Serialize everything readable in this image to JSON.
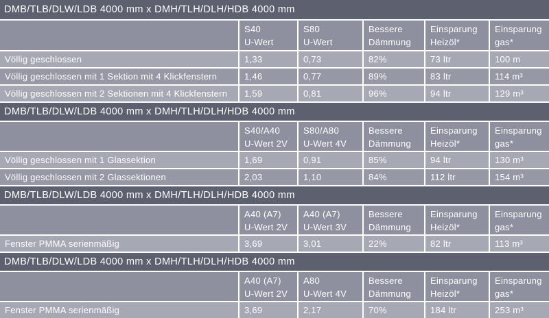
{
  "colors": {
    "band": "#5d606f",
    "column_header": "#8e90a0",
    "row_light": "#a6a8b4",
    "row_dark": "#9798a6",
    "text": "#ffffff",
    "separator": "#ffffff"
  },
  "sections": [
    {
      "title": "DMB/TLB/DLW/LDB 4000 mm x DMH/TLH/DLH/HDB 4000 mm",
      "columns": [
        {
          "line1": "S40",
          "line2": "U-Wert"
        },
        {
          "line1": "S80",
          "line2": "U-Wert"
        },
        {
          "line1": "Bessere",
          "line2": "Dämmung"
        },
        {
          "line1": "Einsparung",
          "line2": "Heizöl*"
        },
        {
          "line1": "Einsparung",
          "line2": "gas*"
        }
      ],
      "rows": [
        {
          "label": "Völlig geschlossen",
          "values": [
            "1,33",
            "0,73",
            "82%",
            "73 ltr",
            "100 m"
          ]
        },
        {
          "label": "Völlig geschlossen mit 1 Sektion mit 4 Klickfenstern",
          "values": [
            "1,46",
            "0,77",
            "89%",
            "83 ltr",
            "114 m³"
          ]
        },
        {
          "label": "Völlig geschlossen mit 2 Sektionen mit 4 Klickfenstern",
          "values": [
            "1,59",
            "0,81",
            "96%",
            "94 ltr",
            "129 m³"
          ]
        }
      ]
    },
    {
      "title": "DMB/TLB/DLW/LDB 4000 mm x DMH/TLH/DLH/HDB 4000 mm",
      "columns": [
        {
          "line1": "S40/A40",
          "line2": "U-Wert 2V"
        },
        {
          "line1": "S80/A80",
          "line2": "U-Wert 4V"
        },
        {
          "line1": "Bessere",
          "line2": "Dämmung"
        },
        {
          "line1": "Einsparung",
          "line2": "Heizöl*"
        },
        {
          "line1": "Einsparung",
          "line2": "gas*"
        }
      ],
      "rows": [
        {
          "label": "Völlig geschlossen mit 1 Glassektion",
          "values": [
            "1,69",
            "0,91",
            "85%",
            "94 ltr",
            "130 m³"
          ]
        },
        {
          "label": "Völlig geschlossen mit 2 Glassektionen",
          "values": [
            "2,03",
            "1,10",
            "84%",
            "112 ltr",
            "154 m³"
          ]
        }
      ]
    },
    {
      "title": "DMB/TLB/DLW/LDB 4000 mm x DMH/TLH/DLH/HDB 4000 mm",
      "columns": [
        {
          "line1": "A40 (A7)",
          "line2": "U-Wert 2V"
        },
        {
          "line1": "A40 (A7)",
          "line2": "U-Wert 3V"
        },
        {
          "line1": "Bessere",
          "line2": "Dämmung"
        },
        {
          "line1": "Einsparung",
          "line2": "Heizöl*"
        },
        {
          "line1": "Einsparung",
          "line2": "gas*"
        }
      ],
      "rows": [
        {
          "label": "Fenster PMMA serienmäßig",
          "values": [
            "3,69",
            "3,01",
            "22%",
            "82 ltr",
            "113 m³"
          ]
        }
      ]
    },
    {
      "title": "DMB/TLB/DLW/LDB 4000 mm x DMH/TLH/DLH/HDB 4000 mm",
      "columns": [
        {
          "line1": "A40 (A7)",
          "line2": "U-Wert 2V"
        },
        {
          "line1": "A80",
          "line2": "U-Wert 4V"
        },
        {
          "line1": "Bessere",
          "line2": "Dämmung"
        },
        {
          "line1": "Einsparung",
          "line2": "Heizöl*"
        },
        {
          "line1": "Einsparung",
          "line2": "gas*"
        }
      ],
      "rows": [
        {
          "label": "Fenster PMMA serienmäßig",
          "values": [
            "3,69",
            "2,17",
            "70%",
            "184 ltr",
            "253 m³"
          ]
        }
      ]
    }
  ]
}
